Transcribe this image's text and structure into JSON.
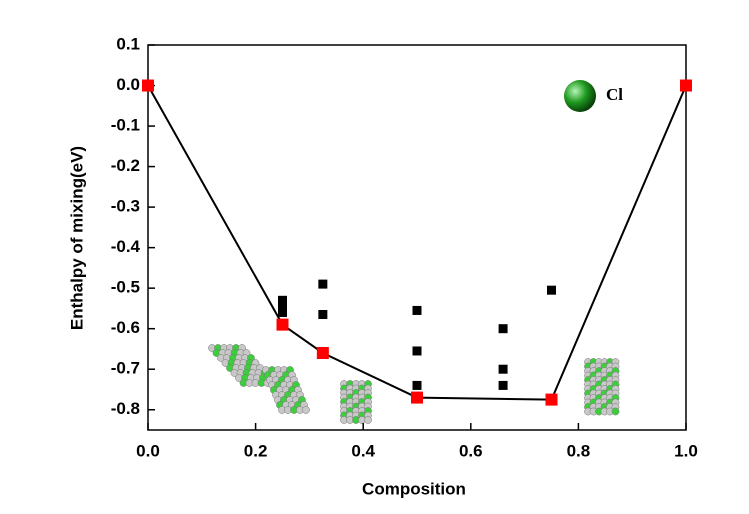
{
  "chart_data": {
    "type": "scatter",
    "x_label": "Composition",
    "y_label": "Enthalpy of mixing(eV)",
    "annotation": "Cl",
    "xlim": [
      0,
      1
    ],
    "ylim": [
      -0.85,
      0.1
    ],
    "xticks": [
      {
        "value": 0,
        "label": "0.0"
      },
      0.2,
      0.4,
      0.6,
      0.8,
      {
        "value": 1,
        "label": "1.0"
      }
    ],
    "yticks": [
      0.1,
      {
        "value": 0,
        "label": "0.0"
      },
      -0.1,
      -0.2,
      -0.3,
      -0.4,
      -0.5,
      -0.6,
      -0.7,
      -0.8
    ],
    "series": [
      {
        "color": "#000000",
        "x": [
          0.25,
          0.25,
          0.25,
          0.325,
          0.325,
          0.5,
          0.5,
          0.5,
          0.66,
          0.66,
          0.66,
          0.75
        ],
        "values": [
          -0.53,
          -0.545,
          -0.56,
          -0.49,
          -0.565,
          -0.555,
          -0.655,
          -0.74,
          -0.6,
          -0.7,
          -0.74,
          -0.505
        ]
      },
      {
        "color": "#ff0000",
        "line_color": "#000000",
        "x": [
          0,
          0.25,
          0.325,
          0.5,
          0.75,
          1
        ],
        "values": [
          0,
          -0.59,
          -0.66,
          -0.77,
          -0.775,
          0
        ]
      }
    ]
  }
}
